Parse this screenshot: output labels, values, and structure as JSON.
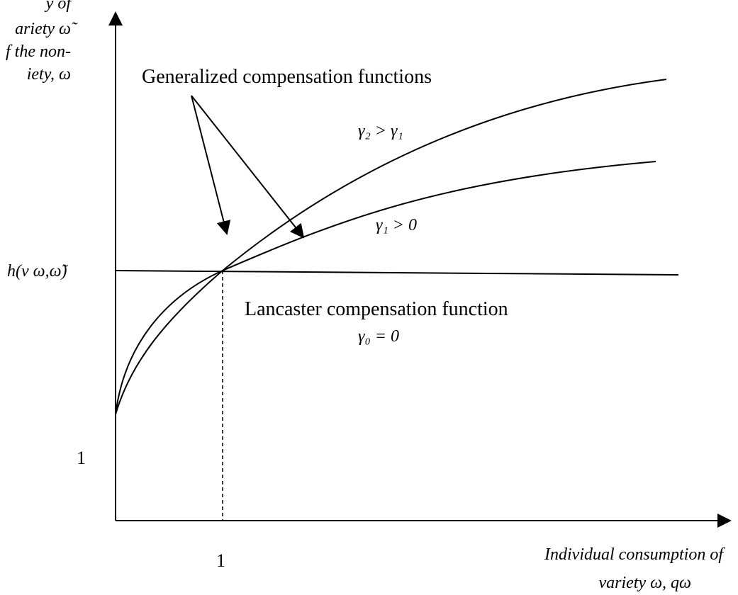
{
  "y_axis_label": {
    "lines": [
      "y of",
      "ariety ω̃",
      "f the non-",
      "iety, ω"
    ]
  },
  "annotations": {
    "generalized": "Generalized compensation functions",
    "gamma2": "γ₂ > γ₁",
    "gamma1": "γ₁ > 0",
    "lancaster": "Lancaster compensation function",
    "gamma0": "γ₀ = 0"
  },
  "y_marks": {
    "h": "h(v ω,ω̃)",
    "one": "1"
  },
  "x_marks": {
    "one": "1"
  },
  "x_axis_label": {
    "lines": [
      "Individual consumption of",
      "variety ω,  qω"
    ]
  }
}
